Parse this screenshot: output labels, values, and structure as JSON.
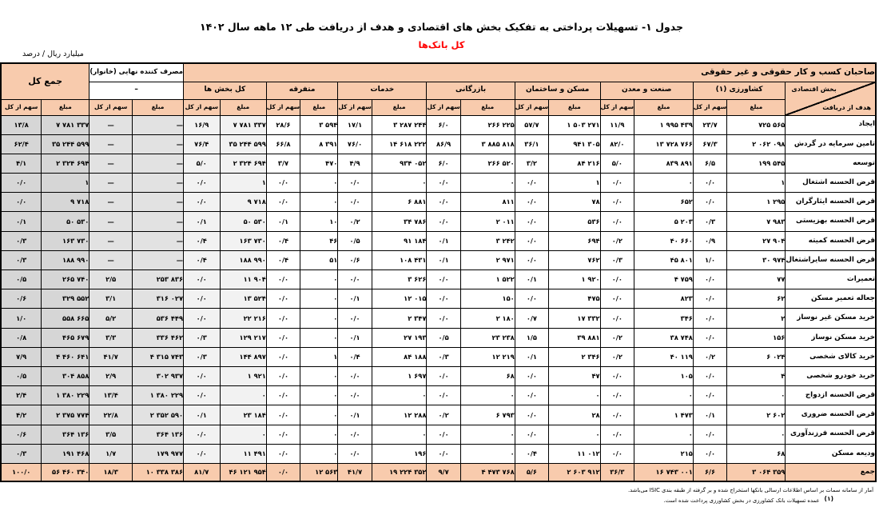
{
  "page": {
    "title": "جدول ۱- تسهیلات پرداختی به تفکیک بخش های اقتصادی و هدف از دریافت طی ۱۲ ماهه سال ۱۴۰۲",
    "subtitle": "کل بانک‌ها",
    "unit_label": "میلیارد ریال / درصد"
  },
  "table": {
    "corner": {
      "sector_label": "بخش اقتصادی",
      "purpose_label": "هدف از دریافت"
    },
    "band_label": "صاحبان کسب و کار حقوقی و غیر حقوقی",
    "household_label": "مصرف کننده نهایی (خانوار)",
    "household_dash": "–",
    "grand_total_label": "جمع کل",
    "amount_label": "مبلغ",
    "share_label": "سهم از کل",
    "groups": [
      "کشاورزی (۱)",
      "صنعت و معدن",
      "مسکن و ساختمان",
      "بازرگانی",
      "خدمات",
      "متفرقه",
      "کل بخش ها"
    ],
    "colors": {
      "header_bg": "#f8cbad",
      "accent_red": "#ff0000",
      "all_sectors_col_bg": "#f2f2f2",
      "household_col_bg": "#e2e2e2",
      "grand_total_col_bg": "#d6d6d6"
    },
    "rows": [
      {
        "label": "ایجاد",
        "values": [
          "۷۲۵ ۵۶۵",
          "۲۳/۷",
          "۱ ۹۹۵ ۴۳۹",
          "۱۱/۹",
          "۱ ۵۰۳ ۲۷۱",
          "۵۷/۷",
          "۲۶۶ ۲۲۵",
          "۶/۰",
          "۳ ۲۸۷ ۲۴۴",
          "۱۷/۱",
          "۳ ۵۹۴",
          "۲۸/۶",
          "۷ ۷۸۱ ۳۳۷",
          "۱۶/۹",
          "—",
          "—",
          "۷ ۷۸۱ ۳۳۷",
          "۱۳/۸"
        ]
      },
      {
        "label": "تامین سرمایه در گردش",
        "values": [
          "۲ ۰۶۲ ۰۹۸",
          "۶۷/۳",
          "۱۳ ۷۲۸ ۷۶۶",
          "۸۲/۰",
          "۹۴۱ ۳۰۵",
          "۳۶/۱",
          "۳ ۸۸۵ ۸۱۸",
          "۸۶/۹",
          "۱۴ ۶۱۸ ۲۲۲",
          "۷۶/۰",
          "۸ ۳۹۱",
          "۶۶/۸",
          "۳۵ ۲۴۴ ۵۹۹",
          "۷۶/۴",
          "—",
          "—",
          "۳۵ ۲۴۴ ۵۹۹",
          "۶۲/۴"
        ]
      },
      {
        "label": "توسعه",
        "values": [
          "۱۹۹ ۵۴۵",
          "۶/۵",
          "۸۳۹ ۸۹۱",
          "۵/۰",
          "۸۴ ۲۱۶",
          "۳/۲",
          "۲۶۶ ۵۲۰",
          "۶/۰",
          "۹۳۴ ۰۵۲",
          "۴/۹",
          "۴۷۰",
          "۳/۷",
          "۲ ۳۲۴ ۶۹۴",
          "۵/۰",
          "—",
          "—",
          "۲ ۳۲۴ ۶۹۴",
          "۴/۱"
        ]
      },
      {
        "label": "قرض الحسنه اشتغال",
        "values": [
          "۱",
          "۰/۰",
          "۰",
          "۰/۰",
          "۱",
          "۰/۰",
          "۰",
          "۰/۰",
          "۰",
          "۰/۰",
          "۰",
          "۰/۰",
          "۱",
          "۰/۰",
          "—",
          "—",
          "۱",
          "۰/۰"
        ]
      },
      {
        "label": "قرض الحسنه ایثارگران",
        "values": [
          "۱ ۲۹۵",
          "۰/۰",
          "۶۵۲",
          "۰/۰",
          "۷۸",
          "۰/۰",
          "۸۱۱",
          "۰/۰",
          "۶ ۸۸۱",
          "۰/۰",
          "۰",
          "۰/۰",
          "۹ ۷۱۸",
          "۰/۰",
          "—",
          "—",
          "۹ ۷۱۸",
          "۰/۰"
        ]
      },
      {
        "label": "قرض الحسنه بهزیستی",
        "values": [
          "۷ ۹۸۳",
          "۰/۳",
          "۵ ۲۰۳",
          "۰/۰",
          "۵۳۶",
          "۰/۰",
          "۲ ۰۱۱",
          "۰/۰",
          "۳۴ ۷۸۶",
          "۰/۲",
          "۱۰",
          "۰/۱",
          "۵۰ ۵۳۰",
          "۰/۱",
          "—",
          "—",
          "۵۰ ۵۳۰",
          "۰/۱"
        ]
      },
      {
        "label": "قرض الحسنه کمیته",
        "values": [
          "۲۷ ۹۰۴",
          "۰/۹",
          "۴۰ ۶۶۰",
          "۰/۲",
          "۶۹۴",
          "۰/۰",
          "۳ ۲۴۲",
          "۰/۱",
          "۹۱ ۱۸۴",
          "۰/۵",
          "۴۶",
          "۰/۴",
          "۱۶۳ ۷۳۰",
          "۰/۴",
          "—",
          "—",
          "۱۶۳ ۷۳۰",
          "۰/۳"
        ]
      },
      {
        "label": "قرض الحسنه سایراشتغال",
        "values": [
          "۳۰ ۹۷۴",
          "۱/۰",
          "۴۵ ۸۰۱",
          "۰/۳",
          "۷۶۲",
          "۰/۰",
          "۲ ۹۷۱",
          "۰/۱",
          "۱۰۸ ۴۳۱",
          "۰/۶",
          "۵۱",
          "۰/۴",
          "۱۸۸ ۹۹۰",
          "۰/۴",
          "—",
          "—",
          "۱۸۸ ۹۹۰",
          "۰/۳"
        ]
      },
      {
        "label": "تعمیرات",
        "values": [
          "۷۷",
          "۰/۰",
          "۴ ۷۵۹",
          "۰/۰",
          "۱ ۹۲۰",
          "۰/۱",
          "۱ ۵۲۲",
          "۰/۰",
          "۳ ۶۲۶",
          "۰/۰",
          "۰",
          "۰/۰",
          "۱۱ ۹۰۴",
          "۰/۰",
          "۲۵۳ ۸۳۶",
          "۲/۵",
          "۲۶۵ ۷۴۰",
          "۰/۵"
        ]
      },
      {
        "label": "جعاله تعمیر مسکن",
        "values": [
          "۶۲",
          "۰/۰",
          "۸۲۳",
          "۰/۰",
          "۴۷۵",
          "۰/۰",
          "۱۵۰",
          "۰/۰",
          "۱۲ ۰۱۵",
          "۰/۱",
          "۰",
          "۰/۰",
          "۱۳ ۵۲۴",
          "۰/۰",
          "۳۱۶ ۰۲۷",
          "۳/۱",
          "۳۲۹ ۵۵۲",
          "۰/۶"
        ]
      },
      {
        "label": "خرید مسکن غیر نوساز",
        "values": [
          "۲",
          "۰/۰",
          "۳۴۶",
          "۰/۰",
          "۱۷ ۳۳۲",
          "۰/۷",
          "۲ ۱۸۰",
          "۰/۰",
          "۲ ۳۴۷",
          "۰/۰",
          "۰",
          "۰/۰",
          "۲۲ ۲۱۶",
          "۰/۰",
          "۵۳۶ ۴۴۹",
          "۵/۲",
          "۵۵۸ ۶۶۵",
          "۱/۰"
        ]
      },
      {
        "label": "خرید مسکن نوساز",
        "values": [
          "۱۵۶",
          "۰/۰",
          "۳۸ ۷۴۸",
          "۰/۲",
          "۳۹ ۸۸۱",
          "۱/۵",
          "۲۳ ۲۳۸",
          "۰/۵",
          "۲۷ ۱۹۳",
          "۰/۱",
          "۰",
          "۰/۰",
          "۱۲۹ ۲۱۷",
          "۰/۳",
          "۳۳۶ ۴۶۲",
          "۳/۳",
          "۴۶۵ ۶۷۹",
          "۰/۸"
        ]
      },
      {
        "label": "خرید کالای شخصی",
        "values": [
          "۶ ۰۲۴",
          "۰/۲",
          "۴۰ ۱۱۹",
          "۰/۲",
          "۲ ۳۴۶",
          "۰/۱",
          "۱۲ ۲۱۹",
          "۰/۳",
          "۸۴ ۱۸۸",
          "۰/۴",
          "۱",
          "۰/۰",
          "۱۴۴ ۸۹۷",
          "۰/۳",
          "۴ ۳۱۵ ۷۴۳",
          "۴۱/۷",
          "۴ ۴۶۰ ۶۴۱",
          "۷/۹"
        ]
      },
      {
        "label": "خرید خودرو شخصی",
        "values": [
          "۴",
          "۰/۰",
          "۱۰۵",
          "۰/۰",
          "۴۷",
          "۰/۰",
          "۶۸",
          "۰/۰",
          "۱ ۶۹۷",
          "۰/۰",
          "۰",
          "۰/۰",
          "۱ ۹۲۱",
          "۰/۰",
          "۳۰۲ ۹۳۷",
          "۲/۹",
          "۳۰۴ ۸۵۸",
          "۰/۵"
        ]
      },
      {
        "label": "قرض الحسنه ازدواج",
        "values": [
          "۰",
          "۰/۰",
          "۰",
          "۰/۰",
          "۰",
          "۰/۰",
          "۰",
          "۰/۰",
          "۰",
          "۰/۰",
          "۰",
          "۰/۰",
          "۰",
          "۰/۰",
          "۱ ۳۸۰ ۲۲۹",
          "۱۳/۴",
          "۱ ۳۸۰ ۲۲۹",
          "۲/۴"
        ]
      },
      {
        "label": "قرض الحسنه ضروری",
        "values": [
          "۲ ۶۰۲",
          "۰/۱",
          "۱ ۴۷۳",
          "۰/۰",
          "۲۸",
          "۰/۰",
          "۶ ۷۹۳",
          "۰/۲",
          "۱۲ ۲۸۸",
          "۰/۱",
          "۰",
          "۰/۰",
          "۲۳ ۱۸۴",
          "۰/۱",
          "۲ ۳۵۲ ۵۹۰",
          "۲۲/۸",
          "۲ ۳۷۵ ۷۷۴",
          "۴/۲"
        ]
      },
      {
        "label": "قرض الحسنه فرزندآوری",
        "values": [
          "۰",
          "۰/۰",
          "۰",
          "۰/۰",
          "۰",
          "۰/۰",
          "۰",
          "۰/۰",
          "۰",
          "۰/۰",
          "۰",
          "۰/۰",
          "۰",
          "۰/۰",
          "۳۶۴ ۱۳۶",
          "۳/۵",
          "۳۶۴ ۱۳۶",
          "۰/۶"
        ]
      },
      {
        "label": "ودیعه مسکن",
        "values": [
          "۶۸",
          "۰/۰",
          "۲۱۵",
          "۰/۰",
          "۱۱ ۰۱۲",
          "۰/۴",
          "۰",
          "۰/۰",
          "۱۹۶",
          "۰/۰",
          "۰",
          "۰/۰",
          "۱۱ ۴۹۱",
          "۰/۰",
          "۱۷۹ ۹۷۷",
          "۱/۷",
          "۱۹۱ ۴۶۸",
          "۰/۳"
        ]
      }
    ],
    "total_row": {
      "label": "جمع",
      "values": [
        "۳ ۰۶۴ ۳۵۹",
        "۶/۶",
        "۱۶ ۷۴۳ ۰۰۱",
        "۳۶/۳",
        "۲ ۶۰۳ ۹۱۲",
        "۵/۶",
        "۴ ۴۷۳ ۷۶۸",
        "۹/۷",
        "۱۹ ۲۲۴ ۳۵۲",
        "۴۱/۷",
        "۱۲ ۵۶۳",
        "۰/۰",
        "۴۶ ۱۲۱ ۹۵۴",
        "۸۱/۷",
        "۱۰ ۳۳۸ ۳۸۶",
        "۱۸/۳",
        "۵۶ ۴۶۰ ۳۴۰",
        "۱۰۰/۰"
      ]
    }
  },
  "footnotes": {
    "line1": "آمار از سامانه سمات بر اساس اطلاعات ارسالی بانکها استخراج شده و بر گرفته از طبقه بندی ISIC می‌باشد.",
    "line2_ref": "(۱)",
    "line2_text": "عمده تسهیلات بانک کشاورزی در بخش کشاورزی پرداخت شده است."
  }
}
